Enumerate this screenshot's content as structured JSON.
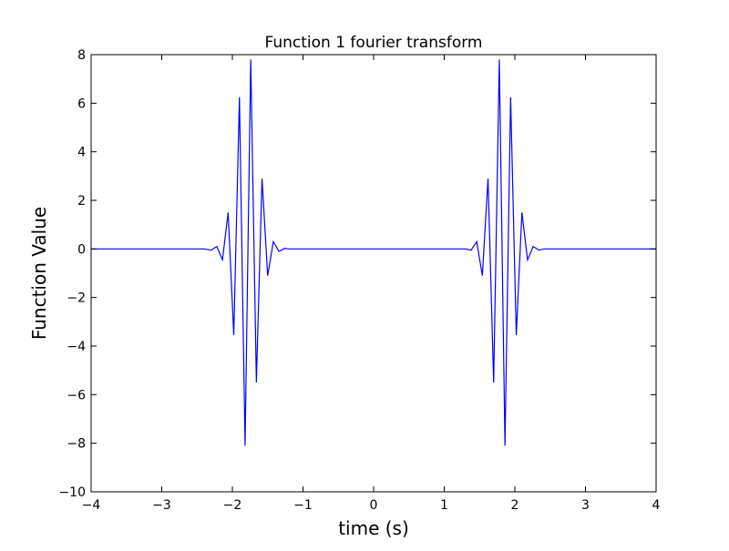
{
  "chart_data": {
    "type": "line",
    "title": "Function 1 fourier transform",
    "xlabel": "time (s)",
    "ylabel": "Function Value",
    "xlim": [
      -4,
      4
    ],
    "ylim": [
      -10,
      8
    ],
    "grid": false,
    "legend": "none",
    "xticks": [
      -4,
      -3,
      -2,
      -1,
      0,
      1,
      2,
      3,
      4
    ],
    "yticks": [
      -10,
      -8,
      -6,
      -4,
      -2,
      0,
      2,
      4,
      6,
      8
    ],
    "xtick_labels": [
      "−4",
      "−3",
      "−2",
      "−1",
      "0",
      "1",
      "2",
      "3",
      "4"
    ],
    "ytick_labels": [
      "−10",
      "−8",
      "−6",
      "−4",
      "−2",
      "0",
      "2",
      "4",
      "6",
      "8"
    ],
    "series": [
      {
        "color": "#0000ff",
        "x": [
          -4.0,
          -2.4,
          -2.3,
          -2.22,
          -2.14,
          -2.06,
          -1.98,
          -1.9,
          -1.82,
          -1.74,
          -1.66,
          -1.58,
          -1.5,
          -1.42,
          -1.34,
          -1.26,
          -1.2,
          1.2,
          1.3,
          1.38,
          1.46,
          1.54,
          1.62,
          1.7,
          1.78,
          1.86,
          1.94,
          2.02,
          2.1,
          2.18,
          2.26,
          2.34,
          2.42,
          2.5,
          4.0
        ],
        "y": [
          0.0,
          0.0,
          -0.05,
          0.1,
          -0.45,
          1.5,
          -3.55,
          6.25,
          -8.1,
          7.8,
          -5.5,
          2.9,
          -1.1,
          0.3,
          -0.1,
          0.02,
          0.0,
          0.0,
          0.0,
          -0.05,
          0.3,
          -1.1,
          2.9,
          -5.5,
          7.8,
          -8.1,
          6.25,
          -3.55,
          1.5,
          -0.45,
          0.1,
          -0.05,
          0.0,
          0.0,
          0.0
        ]
      }
    ]
  }
}
